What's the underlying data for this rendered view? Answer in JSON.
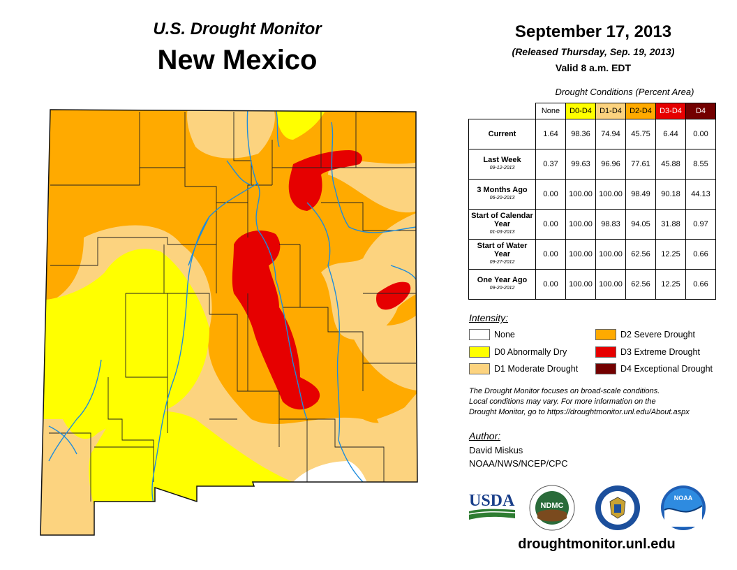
{
  "header": {
    "subtitle": "U.S. Drought Monitor",
    "state": "New Mexico",
    "date": "September 17, 2013",
    "released": "(Released Thursday, Sep. 19, 2013)",
    "valid": "Valid 8 a.m. EDT"
  },
  "table": {
    "title": "Drought Conditions (Percent Area)",
    "columns": [
      {
        "label": "None",
        "color": "#ffffff",
        "text_color": "#000000"
      },
      {
        "label": "D0-D4",
        "color": "#ffff00",
        "text_color": "#000000"
      },
      {
        "label": "D1-D4",
        "color": "#fcd37f",
        "text_color": "#000000"
      },
      {
        "label": "D2-D4",
        "color": "#ffaa00",
        "text_color": "#000000"
      },
      {
        "label": "D3-D4",
        "color": "#e60000",
        "text_color": "#ffffff"
      },
      {
        "label": "D4",
        "color": "#730000",
        "text_color": "#ffffff"
      }
    ],
    "rows": [
      {
        "label": "Current",
        "date": "",
        "values": [
          "1.64",
          "98.36",
          "74.94",
          "45.75",
          "6.44",
          "0.00"
        ]
      },
      {
        "label": "Last Week",
        "date": "09-12-2013",
        "values": [
          "0.37",
          "99.63",
          "96.96",
          "77.61",
          "45.88",
          "8.55"
        ]
      },
      {
        "label": "3 Months Ago",
        "date": "06-20-2013",
        "values": [
          "0.00",
          "100.00",
          "100.00",
          "98.49",
          "90.18",
          "44.13"
        ]
      },
      {
        "label": "Start of Calendar Year",
        "date": "01-03-2013",
        "values": [
          "0.00",
          "100.00",
          "98.83",
          "94.05",
          "31.88",
          "0.97"
        ]
      },
      {
        "label": "Start of Water Year",
        "date": "09-27-2012",
        "values": [
          "0.00",
          "100.00",
          "100.00",
          "62.56",
          "12.25",
          "0.66"
        ]
      },
      {
        "label": "One Year Ago",
        "date": "09-20-2012",
        "values": [
          "0.00",
          "100.00",
          "100.00",
          "62.56",
          "12.25",
          "0.66"
        ]
      }
    ]
  },
  "legend": {
    "title": "Intensity:",
    "items": [
      {
        "label": "None",
        "color": "#ffffff"
      },
      {
        "label": "D0 Abnormally Dry",
        "color": "#ffff00"
      },
      {
        "label": "D1 Moderate Drought",
        "color": "#fcd37f"
      },
      {
        "label": "D2 Severe Drought",
        "color": "#ffaa00"
      },
      {
        "label": "D3 Extreme Drought",
        "color": "#e60000"
      },
      {
        "label": "D4 Exceptional Drought",
        "color": "#730000"
      }
    ]
  },
  "note": {
    "line1": "The Drought Monitor focuses on broad-scale conditions.",
    "line2": "Local conditions may vary. For more information on the",
    "line3": "Drought Monitor, go to https://droughtmonitor.unl.edu/About.aspx"
  },
  "author": {
    "title": "Author:",
    "name": "David Miskus",
    "org": "NOAA/NWS/NCEP/CPC"
  },
  "logos": {
    "usda": "USDA",
    "ndmc": "NDMC",
    "noaa": "NOAA"
  },
  "website": "droughtmonitor.unl.edu"
}
